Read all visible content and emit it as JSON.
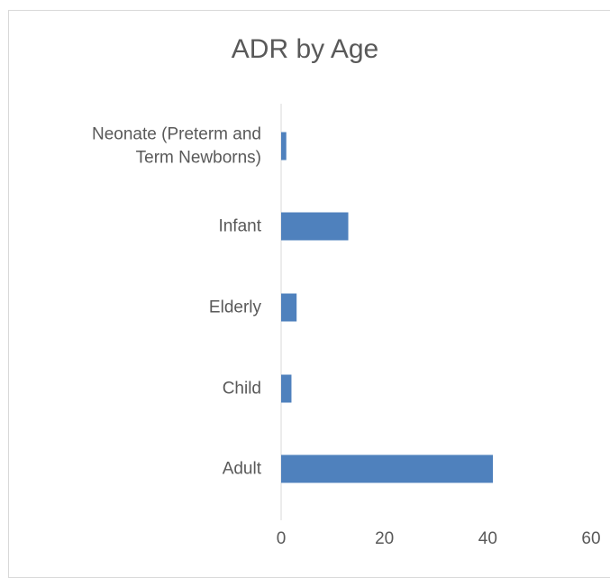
{
  "chart_data": {
    "type": "bar",
    "orientation": "horizontal",
    "title": "ADR by Age",
    "xlabel": "",
    "ylabel": "",
    "categories": [
      "Neonate (Preterm and Term Newborns)",
      "Infant",
      "Elderly",
      "Child",
      "Adult"
    ],
    "category_label_lines": [
      [
        "Neonate (Preterm and",
        "Term Newborns)"
      ],
      [
        "Infant"
      ],
      [
        "Elderly"
      ],
      [
        "Child"
      ],
      [
        "Adult"
      ]
    ],
    "values": [
      1,
      13,
      3,
      2,
      41
    ],
    "xlim": [
      0,
      60
    ],
    "xticks": [
      "0",
      "20",
      "40",
      "60"
    ],
    "grid": false,
    "legend": "none",
    "bar_color": "#4f81bd",
    "axis_color": "#d9d9d9",
    "text_color": "#595959"
  }
}
